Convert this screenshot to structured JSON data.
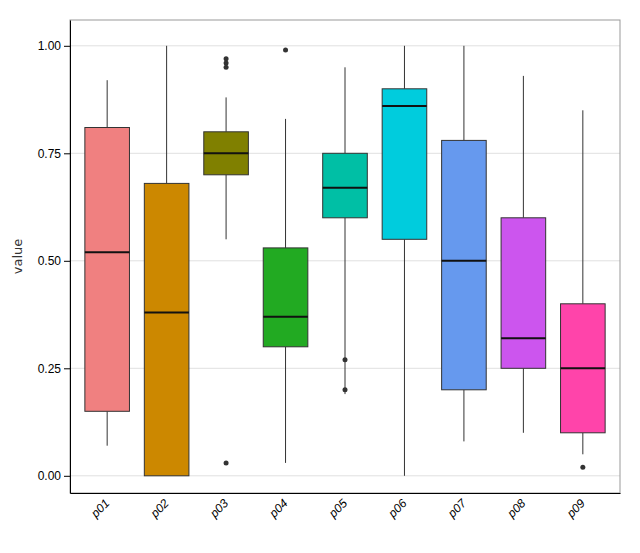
{
  "chart_data": {
    "type": "box",
    "categories": [
      "p01",
      "p02",
      "p03",
      "p04",
      "p05",
      "p06",
      "p07",
      "p08",
      "p09"
    ],
    "colors": [
      "#F08080",
      "#CC8800",
      "#808000",
      "#22AA22",
      "#00BFA5",
      "#00CCDD",
      "#6699EE",
      "#CC55EE",
      "#FF44AA"
    ],
    "boxes": [
      {
        "q1": 0.15,
        "median": 0.52,
        "q3": 0.81,
        "whislo": 0.07,
        "whishi": 0.92,
        "fliers": []
      },
      {
        "q1": 0.0,
        "median": 0.38,
        "q3": 0.68,
        "whislo": 0.0,
        "whishi": 1.0,
        "fliers": []
      },
      {
        "q1": 0.7,
        "median": 0.75,
        "q3": 0.8,
        "whislo": 0.55,
        "whishi": 0.88,
        "fliers": [
          0.97,
          0.96,
          0.95,
          0.03
        ]
      },
      {
        "q1": 0.3,
        "median": 0.37,
        "q3": 0.53,
        "whislo": 0.03,
        "whishi": 0.83,
        "fliers": [
          0.99
        ]
      },
      {
        "q1": 0.6,
        "median": 0.67,
        "q3": 0.75,
        "whislo": 0.19,
        "whishi": 0.95,
        "fliers": [
          0.27,
          0.2
        ]
      },
      {
        "q1": 0.55,
        "median": 0.86,
        "q3": 0.9,
        "whislo": 0.0,
        "whishi": 1.0,
        "fliers": []
      },
      {
        "q1": 0.2,
        "median": 0.5,
        "q3": 0.78,
        "whislo": 0.08,
        "whishi": 1.0,
        "fliers": []
      },
      {
        "q1": 0.25,
        "median": 0.32,
        "q3": 0.6,
        "whislo": 0.1,
        "whishi": 0.93,
        "fliers": []
      },
      {
        "q1": 0.1,
        "median": 0.25,
        "q3": 0.4,
        "whislo": 0.05,
        "whishi": 0.85,
        "fliers": [
          0.02
        ]
      }
    ],
    "ylabel": "value",
    "ylim": [
      -0.04,
      1.06
    ],
    "yticks": [
      {
        "value": 0.0,
        "label": "0.00"
      },
      0.25,
      {
        "value": 0.5,
        "label": "0.50"
      },
      0.75,
      {
        "value": 1.0,
        "label": "1.00"
      }
    ],
    "grid": true
  }
}
